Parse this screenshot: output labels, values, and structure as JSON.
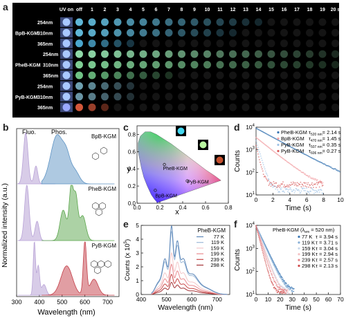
{
  "panels": {
    "a": "a",
    "b": "b",
    "c": "c",
    "d": "d",
    "e": "e",
    "f": "f"
  },
  "panel_a": {
    "col_labels": [
      "UV on",
      "off",
      "1",
      "2",
      "3",
      "4",
      "5",
      "6",
      "7",
      "8",
      "9",
      "10",
      "11",
      "12",
      "13",
      "14",
      "15",
      "16",
      "17",
      "18",
      "19",
      "20 s"
    ],
    "materials": [
      "BpB-KGM",
      "PheB-KGM",
      "PyB-KGM"
    ],
    "wavelengths": [
      "254nm",
      "310nm",
      "365nm"
    ],
    "rows": [
      {
        "mat": 0,
        "wl": "254nm",
        "color": "#5fb6d6",
        "decay": 15
      },
      {
        "mat": 0,
        "wl": "310nm",
        "color": "#5fb6d6",
        "decay": 13
      },
      {
        "mat": 0,
        "wl": "365nm",
        "color": "#4aa5cc",
        "decay": 5
      },
      {
        "mat": 1,
        "wl": "254nm",
        "color": "#8fd9a8",
        "decay": 21
      },
      {
        "mat": 1,
        "wl": "310nm",
        "color": "#7fce95",
        "decay": 21
      },
      {
        "mat": 1,
        "wl": "365nm",
        "color": "#6fc285",
        "decay": 8
      },
      {
        "mat": 2,
        "wl": "254nm",
        "color": "#6ea0b0",
        "decay": 5
      },
      {
        "mat": 2,
        "wl": "310nm",
        "color": "#6a95a5",
        "decay": 5
      },
      {
        "mat": 2,
        "wl": "365nm",
        "color": "#d3573a",
        "decay": 3
      }
    ]
  },
  "panel_b": {
    "ylabel": "Normalized intensity (a.u.)",
    "xlabel": "Wavelength (nm)",
    "fluo_label": "Fluo.",
    "phos_label": "Phos.",
    "names": [
      "BpB-KGM",
      "PheB-KGM",
      "PyB-KGM"
    ],
    "xticks": [
      "300",
      "400",
      "500",
      "600",
      "700"
    ],
    "colors": {
      "fluo": "#b8a2d6",
      "bp": "#5d93c4",
      "phe": "#5aa54b",
      "py": "#c33e48"
    }
  },
  "panel_c": {
    "xlabel": "x",
    "ylabel": "y",
    "xticks": [
      "0.0",
      "0.2",
      "0.4",
      "0.6",
      "0.8"
    ],
    "yticks": [
      "0.0",
      "0.2",
      "0.4",
      "0.6",
      "0.8"
    ],
    "points": [
      {
        "label": "PheB-KGM",
        "x": 0.24,
        "y": 0.45
      },
      {
        "label": "BpB-KGM",
        "x": 0.16,
        "y": 0.15
      },
      {
        "label": "PyB-KGM",
        "x": 0.44,
        "y": 0.26
      }
    ],
    "swatch_colors": [
      "#44d7ef",
      "#b9f6a0",
      "#c5502e"
    ]
  },
  "chart_data": [
    {
      "type": "scatter",
      "panel": "d",
      "xlabel": "Time (s)",
      "ylabel": "Counts",
      "xlim": [
        0,
        10
      ],
      "ylim": [
        10,
        10000
      ],
      "log_y": true,
      "xticks": [
        "0",
        "2",
        "4",
        "6",
        "8",
        "10"
      ],
      "yticks": [
        "10",
        "10",
        "10",
        "10"
      ],
      "ytick_exps": [
        "1",
        "2",
        "3",
        "4"
      ],
      "legend": [
        {
          "name": "PheB-KGM",
          "sub": "520 nm",
          "tau": "= 2.14 s",
          "color": "#3c78b4"
        },
        {
          "name": "BpB-KGM",
          "sub": "470 nm",
          "tau": "= 1.45 s",
          "color": "#f2a2a6"
        },
        {
          "name": "PyB-KGM",
          "sub": "507 nm",
          "tau": "= 0.35 s",
          "color": "#9fc3e6"
        },
        {
          "name": "PyB-KGM",
          "sub": "606 nm",
          "tau": "= 0.27 s",
          "color": "#d95c5c"
        }
      ]
    },
    {
      "type": "line",
      "panel": "e",
      "xlabel": "Wavelength (nm)",
      "ylabel": "Counts (x 10",
      "ylabel_exp": "5",
      "ylabel_tail": ")",
      "xlim": [
        400,
        750
      ],
      "ylim": [
        0,
        5
      ],
      "xticks": [
        "400",
        "500",
        "600",
        "700"
      ],
      "yticks": [
        "0",
        "1",
        "2",
        "3",
        "4",
        "5"
      ],
      "legend_title": "PheB-KGM",
      "series": [
        {
          "name": "77 K",
          "peak": 4.8,
          "color": "#5b86b8"
        },
        {
          "name": "119 K",
          "peak": 4.4,
          "color": "#9cb9d8"
        },
        {
          "name": "159 K",
          "peak": 2.9,
          "color": "#f3c7c9"
        },
        {
          "name": "199 K",
          "peak": 2.1,
          "color": "#e98a8f"
        },
        {
          "name": "239 K",
          "peak": 1.4,
          "color": "#c84848"
        },
        {
          "name": "298 K",
          "peak": 0.85,
          "color": "#a23034"
        }
      ]
    },
    {
      "type": "scatter",
      "panel": "f",
      "xlabel": "Time (s)",
      "ylabel": "Counts",
      "xlim": [
        0,
        70
      ],
      "ylim": [
        10,
        10000
      ],
      "log_y": true,
      "xticks": [
        "0",
        "10",
        "20",
        "30",
        "40",
        "50",
        "60",
        "70"
      ],
      "yticks": [
        "10",
        "10",
        "10",
        "10"
      ],
      "ytick_exps": [
        "1",
        "2",
        "3",
        "4"
      ],
      "legend_title": "PheB-KGM (λ",
      "legend_title_sub": "em",
      "legend_title_tail": " = 520 nm)",
      "series": [
        {
          "name": "77 K",
          "tau": "τ = 3.94 s",
          "color": "#3c78b4"
        },
        {
          "name": "119 K",
          "tau": "τ = 3.71 s",
          "color": "#86aed6"
        },
        {
          "name": "159 K",
          "tau": "τ = 3.04 s",
          "color": "#c7d7ea"
        },
        {
          "name": "199 K",
          "tau": "τ = 2.94 s",
          "color": "#f4c1c3"
        },
        {
          "name": "239 K",
          "tau": "τ = 2.57 s",
          "color": "#e5868b"
        },
        {
          "name": "298 K",
          "tau": "τ = 2.13 s",
          "color": "#cf4b4b"
        }
      ]
    }
  ]
}
